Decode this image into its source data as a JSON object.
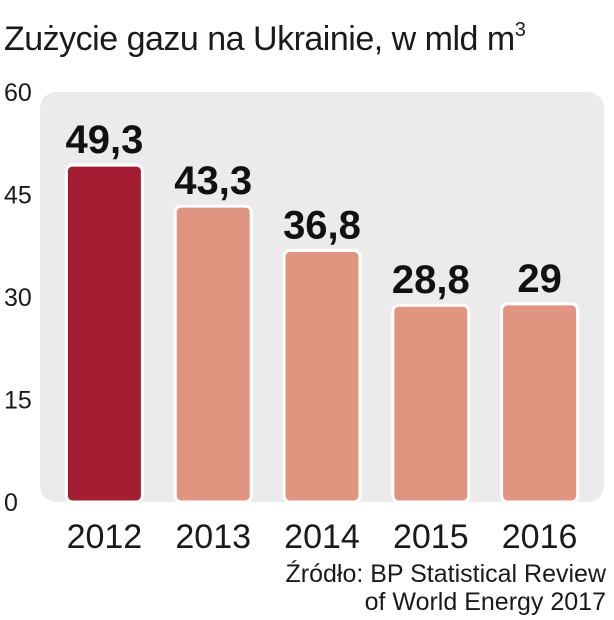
{
  "chart_data": {
    "type": "bar",
    "title": "Zużycie gazu na Ukrainie, w mld m",
    "title_superscript": "3",
    "categories": [
      "2012",
      "2013",
      "2014",
      "2015",
      "2016"
    ],
    "values": [
      49.3,
      43.3,
      36.8,
      28.8,
      29
    ],
    "value_labels": [
      "49,3",
      "43,3",
      "36,8",
      "28,8",
      "29"
    ],
    "yticks": [
      "0",
      "15",
      "30",
      "45",
      "60"
    ],
    "ylim": [
      0,
      60
    ],
    "xlabel": "",
    "ylabel": "",
    "grid": false,
    "colors": {
      "highlight": "#a51d32",
      "bar": "#df9580",
      "bar_border": "#ffffff",
      "plot_background": "#ebebeb"
    }
  },
  "source": {
    "line1": "Źródło: BP Statistical Review",
    "line2": "of World Energy 2017"
  }
}
